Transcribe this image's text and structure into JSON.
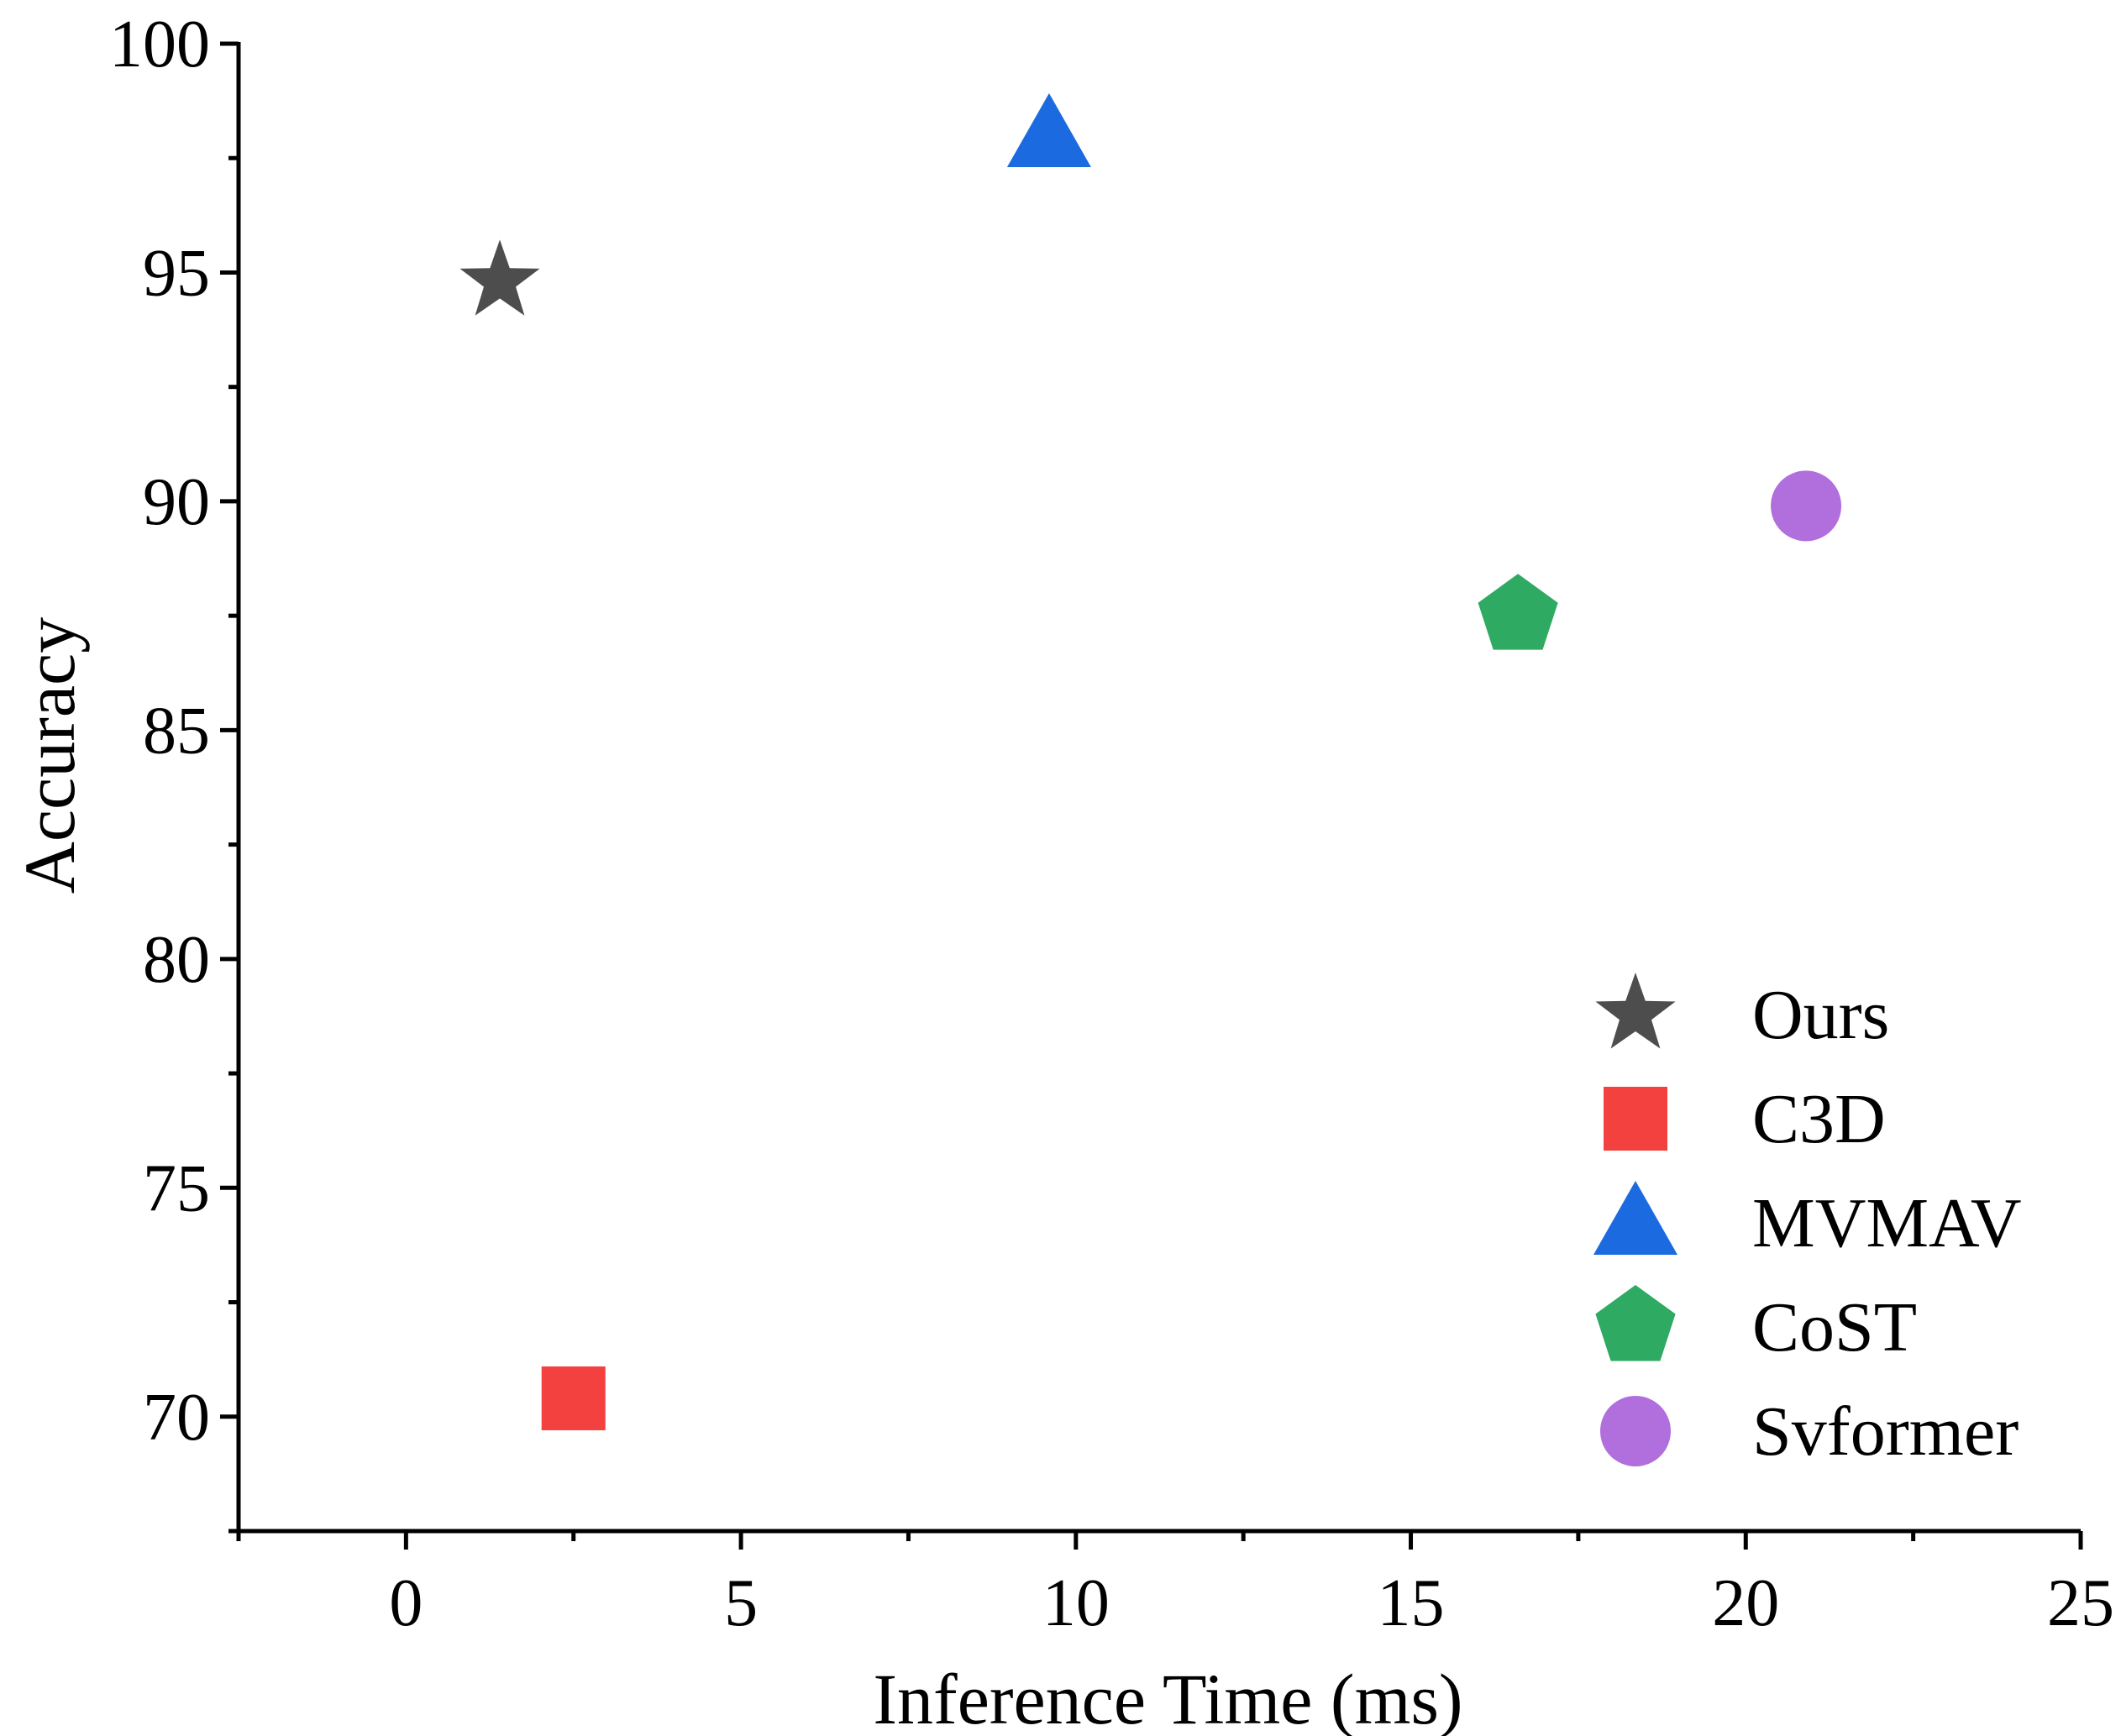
{
  "chart_data": {
    "type": "scatter",
    "title": "",
    "xlabel": "Inference Time (ms)",
    "ylabel": "Accuracy",
    "xlim": [
      -2.5,
      25
    ],
    "ylim": [
      67.5,
      100
    ],
    "x_ticks": [
      0,
      5,
      10,
      15,
      20,
      25
    ],
    "y_ticks": [
      70,
      75,
      80,
      85,
      90,
      95,
      100
    ],
    "grid": false,
    "legend_position": "bottom-right",
    "series": [
      {
        "name": "Ours",
        "marker": "star",
        "color": "#4d4d4d",
        "x": 1.4,
        "y": 94.8
      },
      {
        "name": "C3D",
        "marker": "square",
        "color": "#f34140",
        "x": 2.5,
        "y": 70.4
      },
      {
        "name": "MVMAV",
        "marker": "triangle",
        "color": "#1c6ae0",
        "x": 9.6,
        "y": 98.0
      },
      {
        "name": "CoST",
        "marker": "pentagon",
        "color": "#2eaa62",
        "x": 16.6,
        "y": 87.5
      },
      {
        "name": "Svformer",
        "marker": "circle",
        "color": "#b06fdd",
        "x": 20.9,
        "y": 89.9
      }
    ]
  }
}
